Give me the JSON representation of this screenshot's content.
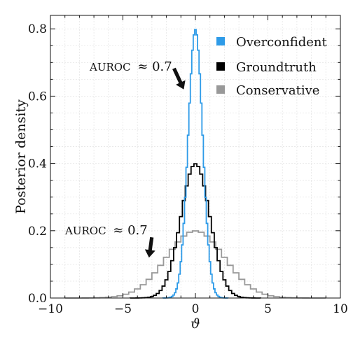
{
  "chart_data": {
    "type": "line",
    "style": "step-histogram",
    "xlabel": "ϑ",
    "ylabel": "Posterior density",
    "xlim": [
      -10,
      10
    ],
    "ylim": [
      0,
      0.84
    ],
    "xticks": [
      -10,
      -5,
      0,
      5,
      10
    ],
    "xtick_labels": [
      "−10",
      "−5",
      "0",
      "5",
      "10"
    ],
    "yticks": [
      0.0,
      0.2,
      0.4,
      0.6,
      0.8
    ],
    "ytick_labels": [
      "0.0",
      "0.2",
      "0.4",
      "0.6",
      "0.8"
    ],
    "grid": true,
    "legend_position": "top-right",
    "series": [
      {
        "name": "Overconfident",
        "color": "#2e9be8",
        "sigma": 0.5
      },
      {
        "name": "Groundtruth",
        "color": "#000000",
        "sigma": 1.0
      },
      {
        "name": "Conservative",
        "color": "#999999",
        "sigma": 2.0
      }
    ],
    "annotations": [
      {
        "label_prefix": "AUROC",
        "label_value": "≈ 0.7",
        "target": "Overconfident",
        "x": -0.8,
        "y": 0.62
      },
      {
        "label_prefix": "AUROC",
        "label_value": "≈ 0.7",
        "target": "Conservative",
        "x": -3.2,
        "y": 0.12
      }
    ]
  }
}
